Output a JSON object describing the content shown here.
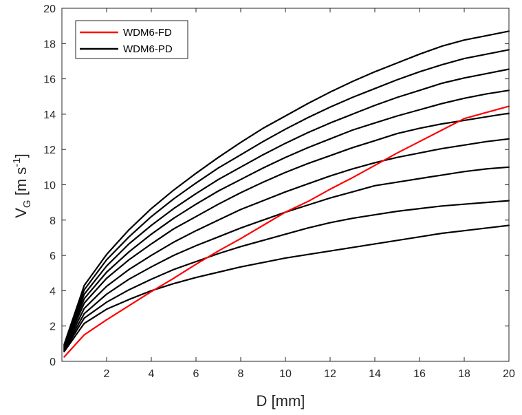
{
  "chart_data": {
    "type": "line",
    "xlabel": "D [mm]",
    "ylabel": {
      "main": "V",
      "subscript": "G",
      "units_open": " [m s",
      "superscript": "-1",
      "units_close": "]"
    },
    "xlim": [
      0,
      20
    ],
    "ylim": [
      0,
      20
    ],
    "xticks": [
      2,
      4,
      6,
      8,
      10,
      12,
      14,
      16,
      18,
      20
    ],
    "yticks": [
      0,
      2,
      4,
      6,
      8,
      10,
      12,
      14,
      16,
      18,
      20
    ],
    "grid": false,
    "legend": {
      "placement": "top-left",
      "entries": [
        {
          "label": "WDM6-FD",
          "color": "#ff0000"
        },
        {
          "label": "WDM6-PD",
          "color": "#000000"
        }
      ]
    },
    "x": [
      0.1,
      1,
      2,
      3,
      4,
      5,
      6,
      7,
      8,
      9,
      10,
      11,
      12,
      13,
      14,
      15,
      16,
      17,
      18,
      19,
      20
    ],
    "series": [
      {
        "name": "WDM6-FD",
        "color": "#ff0000",
        "values": [
          0.25,
          1.5,
          2.35,
          3.15,
          3.95,
          4.7,
          5.5,
          6.25,
          6.95,
          7.7,
          8.45,
          9.05,
          9.75,
          10.4,
          11.1,
          11.8,
          12.45,
          13.1,
          13.75,
          14.1,
          14.45
        ]
      },
      {
        "color": "#000000",
        "values": [
          0.55,
          2.15,
          2.95,
          3.5,
          4.0,
          4.4,
          4.75,
          5.05,
          5.35,
          5.6,
          5.85,
          6.05,
          6.25,
          6.45,
          6.65,
          6.85,
          7.05,
          7.25,
          7.4,
          7.55,
          7.7
        ]
      },
      {
        "color": "#000000",
        "values": [
          0.6,
          2.45,
          3.35,
          4.05,
          4.65,
          5.2,
          5.65,
          6.1,
          6.5,
          6.85,
          7.2,
          7.55,
          7.85,
          8.1,
          8.3,
          8.5,
          8.65,
          8.8,
          8.9,
          9.0,
          9.1
        ]
      },
      {
        "color": "#000000",
        "values": [
          0.65,
          2.7,
          3.8,
          4.65,
          5.35,
          6.0,
          6.55,
          7.05,
          7.55,
          8.0,
          8.45,
          8.85,
          9.25,
          9.6,
          9.95,
          10.15,
          10.35,
          10.55,
          10.75,
          10.9,
          11.0
        ]
      },
      {
        "color": "#000000",
        "values": [
          0.7,
          3.0,
          4.25,
          5.2,
          6.0,
          6.75,
          7.4,
          8.0,
          8.6,
          9.1,
          9.6,
          10.05,
          10.5,
          10.9,
          11.25,
          11.55,
          11.8,
          12.05,
          12.25,
          12.45,
          12.6
        ]
      },
      {
        "color": "#000000",
        "values": [
          0.75,
          3.3,
          4.7,
          5.75,
          6.65,
          7.5,
          8.2,
          8.9,
          9.55,
          10.15,
          10.7,
          11.2,
          11.65,
          12.1,
          12.5,
          12.9,
          13.2,
          13.45,
          13.65,
          13.85,
          14.05
        ]
      },
      {
        "color": "#000000",
        "values": [
          0.8,
          3.55,
          5.05,
          6.2,
          7.2,
          8.1,
          8.9,
          9.65,
          10.3,
          10.95,
          11.55,
          12.1,
          12.6,
          13.1,
          13.5,
          13.9,
          14.25,
          14.6,
          14.9,
          15.15,
          15.35
        ]
      },
      {
        "color": "#000000",
        "values": [
          0.85,
          3.8,
          5.4,
          6.65,
          7.7,
          8.65,
          9.5,
          10.3,
          11.0,
          11.7,
          12.35,
          12.95,
          13.5,
          14.0,
          14.5,
          14.95,
          15.35,
          15.75,
          16.05,
          16.3,
          16.55
        ]
      },
      {
        "color": "#000000",
        "values": [
          0.9,
          4.05,
          5.75,
          7.05,
          8.2,
          9.2,
          10.1,
          10.95,
          11.7,
          12.45,
          13.15,
          13.8,
          14.4,
          14.95,
          15.45,
          15.95,
          16.4,
          16.8,
          17.15,
          17.4,
          17.65
        ]
      },
      {
        "color": "#000000",
        "values": [
          0.95,
          4.3,
          6.05,
          7.45,
          8.65,
          9.7,
          10.65,
          11.55,
          12.4,
          13.2,
          13.9,
          14.6,
          15.25,
          15.85,
          16.4,
          16.9,
          17.4,
          17.85,
          18.2,
          18.45,
          18.7
        ]
      }
    ]
  }
}
